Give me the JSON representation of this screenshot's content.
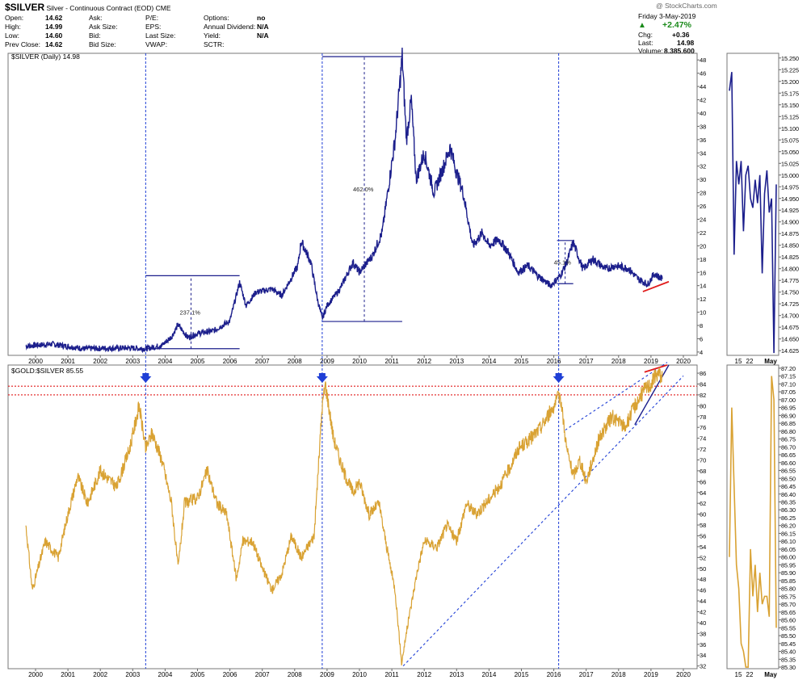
{
  "header": {
    "symbol": "$SILVER",
    "name": "Silver - Continuous Contract (EOD)",
    "exchange": "CME",
    "watermark": "@ StockCharts.com",
    "quote_left": [
      {
        "label": "Open:",
        "value": "14.62"
      },
      {
        "label": "High:",
        "value": "14.99"
      },
      {
        "label": "Low:",
        "value": "14.60"
      },
      {
        "label": "Prev Close:",
        "value": "14.62"
      }
    ],
    "quote_mid": [
      "Ask:",
      "Ask Size:",
      "Bid:",
      "Bid Size:"
    ],
    "quote_fund": [
      "P/E:",
      "EPS:",
      "Last Size:",
      "VWAP:"
    ],
    "quote_right": [
      {
        "label": "Options:",
        "value": "no"
      },
      {
        "label": "Annual Dividend:",
        "value": "N/A"
      },
      {
        "label": "Yield:",
        "value": "N/A"
      },
      {
        "label": "SCTR:",
        "value": ""
      }
    ],
    "date": "Friday  3-May-2019",
    "change_pct": "+2.47%",
    "chg_label": "Chg:",
    "chg_value": "+0.36",
    "last_label": "Last:",
    "last_value": "14.98",
    "volume_label": "Volume:",
    "volume_value": "8,385,600",
    "up_arrow": "▲"
  },
  "legend_top": "$SILVER (Daily) 14.98",
  "legend_bottom": "$GOLD:$SILVER 85.55",
  "annotations": {
    "move_2003": "237.1%",
    "move_2008": "462.0%",
    "move_2016": "45.1%"
  },
  "zoom_labels": [
    "15",
    "22",
    "May"
  ],
  "colors": {
    "silver_line": "#1c1f8c",
    "ratio_line": "#d9a233",
    "marker_blue": "#1f3fd6",
    "trend_red": "#e01b1b"
  },
  "chart_data": [
    {
      "type": "line",
      "series": [
        {
          "name": "$SILVER (Daily)",
          "last": 14.98
        }
      ],
      "x_ticks": [
        "2000",
        "2001",
        "2002",
        "2003",
        "2004",
        "2005",
        "2006",
        "2007",
        "2008",
        "2009",
        "2010",
        "2011",
        "2012",
        "2013",
        "2014",
        "2015",
        "2016",
        "2017",
        "2018",
        "2019",
        "2020"
      ],
      "y_ticks": [
        4,
        6,
        8,
        10,
        12,
        14,
        16,
        18,
        20,
        22,
        24,
        26,
        28,
        30,
        32,
        34,
        36,
        38,
        40,
        42,
        44,
        46,
        48
      ],
      "ylim": [
        3.5,
        49
      ],
      "points": [
        [
          1999.7,
          4.9
        ],
        [
          2000.5,
          5.2
        ],
        [
          2001.5,
          4.5
        ],
        [
          2002.5,
          4.6
        ],
        [
          2003.0,
          4.6
        ],
        [
          2003.4,
          4.5
        ],
        [
          2003.9,
          5.0
        ],
        [
          2004.2,
          6.3
        ],
        [
          2004.4,
          8.1
        ],
        [
          2004.7,
          6.2
        ],
        [
          2005.0,
          6.8
        ],
        [
          2005.5,
          7.2
        ],
        [
          2006.0,
          8.7
        ],
        [
          2006.3,
          14.5
        ],
        [
          2006.5,
          11.0
        ],
        [
          2006.8,
          13.0
        ],
        [
          2007.3,
          13.5
        ],
        [
          2007.6,
          12.5
        ],
        [
          2008.1,
          17.0
        ],
        [
          2008.2,
          20.7
        ],
        [
          2008.5,
          17.5
        ],
        [
          2008.7,
          12.0
        ],
        [
          2008.85,
          9.0
        ],
        [
          2009.0,
          11.0
        ],
        [
          2009.4,
          13.5
        ],
        [
          2009.8,
          17.5
        ],
        [
          2010.0,
          16.0
        ],
        [
          2010.4,
          18.5
        ],
        [
          2010.7,
          22.0
        ],
        [
          2010.9,
          29.0
        ],
        [
          2011.1,
          36.0
        ],
        [
          2011.32,
          48.5
        ],
        [
          2011.45,
          36.0
        ],
        [
          2011.6,
          42.0
        ],
        [
          2011.75,
          30.0
        ],
        [
          2012.0,
          34.0
        ],
        [
          2012.3,
          28.0
        ],
        [
          2012.6,
          32.0
        ],
        [
          2012.8,
          34.8
        ],
        [
          2013.0,
          31.0
        ],
        [
          2013.2,
          28.0
        ],
        [
          2013.5,
          20.0
        ],
        [
          2013.8,
          22.0
        ],
        [
          2014.0,
          20.0
        ],
        [
          2014.3,
          21.0
        ],
        [
          2014.6,
          19.0
        ],
        [
          2014.9,
          16.0
        ],
        [
          2015.2,
          17.0
        ],
        [
          2015.5,
          15.5
        ],
        [
          2015.9,
          14.0
        ],
        [
          2016.2,
          15.5
        ],
        [
          2016.4,
          17.5
        ],
        [
          2016.6,
          20.5
        ],
        [
          2016.9,
          16.5
        ],
        [
          2017.2,
          18.0
        ],
        [
          2017.6,
          16.5
        ],
        [
          2017.9,
          17.0
        ],
        [
          2018.3,
          16.6
        ],
        [
          2018.6,
          15.0
        ],
        [
          2018.9,
          14.2
        ],
        [
          2019.1,
          15.8
        ],
        [
          2019.35,
          14.98
        ]
      ],
      "moves": [
        {
          "label": "237.1%",
          "from": [
            2003.4,
            4.5
          ],
          "to": [
            2006.3,
            15.5
          ],
          "marker_x": 2004.8
        },
        {
          "label": "462.0%",
          "from": [
            2008.85,
            8.6
          ],
          "to": [
            2011.32,
            48.5
          ],
          "marker_x": 2010.15
        },
        {
          "label": "45.1%",
          "from": [
            2016.1,
            14.3
          ],
          "to": [
            2016.6,
            20.8
          ],
          "marker_x": 2016.35
        }
      ],
      "support_line": [
        [
          2018.75,
          13.1
        ],
        [
          2019.55,
          14.6
        ]
      ]
    },
    {
      "type": "line",
      "series": [
        {
          "name": "$GOLD:$SILVER",
          "last": 85.55
        }
      ],
      "x_ticks": [
        "2000",
        "2001",
        "2002",
        "2003",
        "2004",
        "2005",
        "2006",
        "2007",
        "2008",
        "2009",
        "2010",
        "2011",
        "2012",
        "2013",
        "2014",
        "2015",
        "2016",
        "2017",
        "2018",
        "2019",
        "2020"
      ],
      "y_ticks": [
        32,
        34,
        36,
        38,
        40,
        42,
        44,
        46,
        48,
        50,
        52,
        54,
        56,
        58,
        60,
        62,
        64,
        66,
        68,
        70,
        72,
        74,
        76,
        78,
        80,
        82,
        84,
        86
      ],
      "ylim": [
        31.5,
        87.5
      ],
      "points": [
        [
          1999.7,
          58
        ],
        [
          1999.9,
          46
        ],
        [
          2000.3,
          55
        ],
        [
          2000.7,
          52
        ],
        [
          2001.0,
          60
        ],
        [
          2001.3,
          67
        ],
        [
          2001.6,
          62
        ],
        [
          2002.0,
          68
        ],
        [
          2002.5,
          65
        ],
        [
          2002.9,
          72
        ],
        [
          2003.2,
          80
        ],
        [
          2003.4,
          72
        ],
        [
          2003.6,
          75
        ],
        [
          2003.9,
          70
        ],
        [
          2004.2,
          62
        ],
        [
          2004.4,
          50
        ],
        [
          2004.6,
          62
        ],
        [
          2005.0,
          63
        ],
        [
          2005.3,
          68
        ],
        [
          2005.6,
          62
        ],
        [
          2005.9,
          60
        ],
        [
          2006.2,
          48
        ],
        [
          2006.4,
          55
        ],
        [
          2006.7,
          55
        ],
        [
          2007.0,
          50
        ],
        [
          2007.3,
          46
        ],
        [
          2007.6,
          49
        ],
        [
          2007.9,
          56
        ],
        [
          2008.2,
          52
        ],
        [
          2008.6,
          56
        ],
        [
          2008.85,
          80
        ],
        [
          2008.95,
          84
        ],
        [
          2009.2,
          74
        ],
        [
          2009.5,
          68
        ],
        [
          2009.8,
          64
        ],
        [
          2010.0,
          66
        ],
        [
          2010.3,
          60
        ],
        [
          2010.6,
          62
        ],
        [
          2010.9,
          52
        ],
        [
          2011.1,
          46
        ],
        [
          2011.3,
          32.5
        ],
        [
          2011.5,
          40
        ],
        [
          2011.8,
          50
        ],
        [
          2012.0,
          55
        ],
        [
          2012.4,
          54
        ],
        [
          2012.7,
          58
        ],
        [
          2013.0,
          55
        ],
        [
          2013.3,
          62
        ],
        [
          2013.6,
          60
        ],
        [
          2013.9,
          62
        ],
        [
          2014.3,
          65
        ],
        [
          2014.6,
          68
        ],
        [
          2014.9,
          72
        ],
        [
          2015.3,
          74
        ],
        [
          2015.6,
          76
        ],
        [
          2016.0,
          80
        ],
        [
          2016.2,
          82
        ],
        [
          2016.4,
          72
        ],
        [
          2016.6,
          67
        ],
        [
          2016.8,
          70
        ],
        [
          2017.0,
          66
        ],
        [
          2017.4,
          74
        ],
        [
          2017.8,
          78
        ],
        [
          2018.2,
          76
        ],
        [
          2018.5,
          80
        ],
        [
          2018.8,
          83
        ],
        [
          2019.0,
          84
        ],
        [
          2019.2,
          86
        ],
        [
          2019.35,
          85.5
        ]
      ],
      "red_ceiling": 83.6,
      "red_floor": 82.0,
      "markers_x": [
        2003.4,
        2008.85,
        2016.15
      ],
      "upper_channel": [
        [
          2016.35,
          75.5
        ],
        [
          2019.5,
          88.0
        ]
      ],
      "lower_channel": [
        [
          2011.35,
          32.0
        ],
        [
          2020.0,
          85.5
        ]
      ],
      "wedge": [
        [
          2018.5,
          76.5
        ],
        [
          2019.55,
          87.5
        ]
      ],
      "wedge_top_red": [
        [
          2018.8,
          86.2
        ],
        [
          2019.5,
          87.5
        ]
      ]
    },
    {
      "type": "line",
      "series": [
        {
          "name": "$SILVER zoom"
        }
      ],
      "y_ticks": [
        14.625,
        14.65,
        14.675,
        14.7,
        14.725,
        14.75,
        14.775,
        14.8,
        14.825,
        14.85,
        14.875,
        14.9,
        14.925,
        14.95,
        14.975,
        15.0,
        15.025,
        15.05,
        15.075,
        15.1,
        15.125,
        15.15,
        15.175,
        15.2,
        15.225,
        15.25
      ],
      "ylim": [
        14.615,
        15.26
      ],
      "values": [
        15.18,
        15.22,
        14.83,
        15.03,
        14.98,
        15.03,
        14.88,
        15.0,
        15.02,
        14.95,
        14.93,
        14.99,
        14.94,
        15.0,
        14.79,
        14.96,
        15.01,
        14.92,
        14.95,
        14.62,
        14.98
      ]
    },
    {
      "type": "line",
      "series": [
        {
          "name": "$GOLD:$SILVER zoom"
        }
      ],
      "y_ticks": [
        85.3,
        85.35,
        85.4,
        85.45,
        85.5,
        85.55,
        85.6,
        85.65,
        85.7,
        85.75,
        85.8,
        85.85,
        85.9,
        85.95,
        86.0,
        86.05,
        86.1,
        86.15,
        86.2,
        86.25,
        86.3,
        86.35,
        86.4,
        86.45,
        86.5,
        86.55,
        86.6,
        86.65,
        86.7,
        86.75,
        86.8,
        86.85,
        86.9,
        86.95,
        87.0,
        87.05,
        87.1,
        87.15,
        87.2
      ],
      "ylim": [
        85.29,
        87.22
      ],
      "values": [
        86.0,
        86.95,
        86.45,
        85.95,
        85.8,
        85.45,
        85.4,
        85.3,
        85.3,
        86.05,
        85.75,
        85.95,
        85.65,
        85.9,
        85.7,
        85.75,
        85.75,
        85.62,
        87.15,
        87.0,
        85.55
      ]
    }
  ]
}
